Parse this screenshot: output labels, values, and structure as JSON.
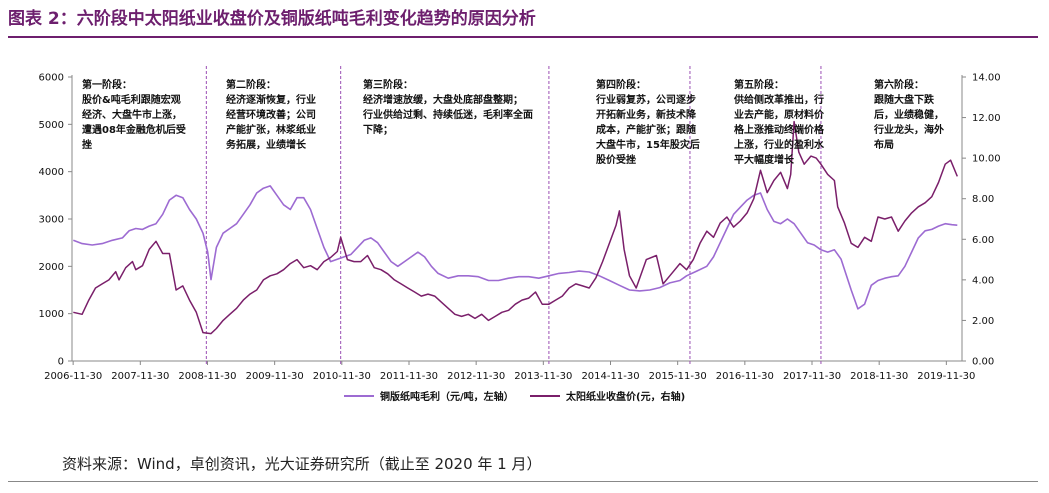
{
  "figure": {
    "title": "图表 2：六阶段中太阳纸业收盘价及铜版纸吨毛利变化趋势的原因分析",
    "source": "资料来源：Wind，卓创资讯，光大证券研究所（截止至 2020 年 1 月）"
  },
  "chart_data": {
    "type": "line",
    "x_tick_labels": [
      "2006-11-30",
      "2007-11-30",
      "2008-11-30",
      "2009-11-30",
      "2010-11-30",
      "2011-11-30",
      "2012-11-30",
      "2013-11-30",
      "2014-11-30",
      "2015-11-30",
      "2016-11-30",
      "2017-11-30",
      "2018-11-30",
      "2019-11-30"
    ],
    "y_left": {
      "ticks": [
        "0",
        "1000",
        "2000",
        "3000",
        "4000",
        "5000",
        "6000"
      ],
      "range": [
        0,
        6000
      ]
    },
    "y_right": {
      "ticks": [
        "0.00",
        "2.00",
        "4.00",
        "6.00",
        "8.00",
        "10.00",
        "12.00",
        "14.00"
      ],
      "range": [
        0,
        14
      ]
    },
    "x_range": [
      2006.9,
      2020.15
    ],
    "grid": false,
    "legend_position": "bottom-center",
    "colors": {
      "margin": "#9d6bd2",
      "price": "#7a1f6a",
      "divider": "#9b4fb4"
    },
    "phase_boundaries": [
      2008.9,
      2010.9,
      2014.0,
      2016.1,
      2018.05
    ],
    "series": [
      {
        "name": "铜版纸吨毛利（元/吨，左轴）",
        "axis": "left",
        "points": [
          [
            2006.92,
            2550
          ],
          [
            2007.05,
            2480
          ],
          [
            2007.2,
            2450
          ],
          [
            2007.35,
            2480
          ],
          [
            2007.5,
            2550
          ],
          [
            2007.65,
            2600
          ],
          [
            2007.75,
            2750
          ],
          [
            2007.85,
            2800
          ],
          [
            2007.95,
            2780
          ],
          [
            2008.05,
            2850
          ],
          [
            2008.15,
            2900
          ],
          [
            2008.25,
            3100
          ],
          [
            2008.35,
            3400
          ],
          [
            2008.45,
            3500
          ],
          [
            2008.55,
            3450
          ],
          [
            2008.65,
            3200
          ],
          [
            2008.75,
            3000
          ],
          [
            2008.85,
            2700
          ],
          [
            2008.92,
            2300
          ],
          [
            2008.97,
            1720
          ],
          [
            2009.05,
            2400
          ],
          [
            2009.15,
            2700
          ],
          [
            2009.25,
            2800
          ],
          [
            2009.35,
            2900
          ],
          [
            2009.45,
            3100
          ],
          [
            2009.55,
            3300
          ],
          [
            2009.65,
            3550
          ],
          [
            2009.75,
            3650
          ],
          [
            2009.85,
            3700
          ],
          [
            2009.95,
            3500
          ],
          [
            2010.05,
            3300
          ],
          [
            2010.15,
            3200
          ],
          [
            2010.25,
            3450
          ],
          [
            2010.35,
            3450
          ],
          [
            2010.45,
            3200
          ],
          [
            2010.55,
            2800
          ],
          [
            2010.65,
            2400
          ],
          [
            2010.75,
            2100
          ],
          [
            2010.85,
            2150
          ],
          [
            2010.95,
            2200
          ],
          [
            2011.05,
            2250
          ],
          [
            2011.15,
            2400
          ],
          [
            2011.25,
            2550
          ],
          [
            2011.35,
            2600
          ],
          [
            2011.45,
            2500
          ],
          [
            2011.55,
            2300
          ],
          [
            2011.65,
            2100
          ],
          [
            2011.75,
            2000
          ],
          [
            2011.85,
            2100
          ],
          [
            2011.95,
            2200
          ],
          [
            2012.05,
            2300
          ],
          [
            2012.15,
            2200
          ],
          [
            2012.25,
            2000
          ],
          [
            2012.35,
            1850
          ],
          [
            2012.5,
            1750
          ],
          [
            2012.65,
            1800
          ],
          [
            2012.8,
            1800
          ],
          [
            2012.95,
            1780
          ],
          [
            2013.1,
            1700
          ],
          [
            2013.25,
            1700
          ],
          [
            2013.4,
            1750
          ],
          [
            2013.55,
            1780
          ],
          [
            2013.7,
            1780
          ],
          [
            2013.85,
            1750
          ],
          [
            2014.0,
            1800
          ],
          [
            2014.15,
            1850
          ],
          [
            2014.3,
            1870
          ],
          [
            2014.45,
            1900
          ],
          [
            2014.6,
            1880
          ],
          [
            2014.75,
            1800
          ],
          [
            2014.9,
            1700
          ],
          [
            2015.05,
            1600
          ],
          [
            2015.2,
            1500
          ],
          [
            2015.35,
            1480
          ],
          [
            2015.5,
            1500
          ],
          [
            2015.65,
            1550
          ],
          [
            2015.8,
            1650
          ],
          [
            2015.95,
            1700
          ],
          [
            2016.05,
            1800
          ],
          [
            2016.2,
            1900
          ],
          [
            2016.35,
            2000
          ],
          [
            2016.45,
            2200
          ],
          [
            2016.55,
            2500
          ],
          [
            2016.65,
            2800
          ],
          [
            2016.75,
            3100
          ],
          [
            2016.85,
            3250
          ],
          [
            2016.95,
            3400
          ],
          [
            2017.05,
            3500
          ],
          [
            2017.15,
            3550
          ],
          [
            2017.25,
            3200
          ],
          [
            2017.35,
            2950
          ],
          [
            2017.45,
            2900
          ],
          [
            2017.55,
            3000
          ],
          [
            2017.65,
            2900
          ],
          [
            2017.75,
            2700
          ],
          [
            2017.85,
            2500
          ],
          [
            2017.95,
            2450
          ],
          [
            2018.05,
            2350
          ],
          [
            2018.15,
            2300
          ],
          [
            2018.25,
            2350
          ],
          [
            2018.35,
            2150
          ],
          [
            2018.5,
            1500
          ],
          [
            2018.6,
            1100
          ],
          [
            2018.7,
            1200
          ],
          [
            2018.8,
            1600
          ],
          [
            2018.9,
            1700
          ],
          [
            2019.0,
            1750
          ],
          [
            2019.1,
            1780
          ],
          [
            2019.2,
            1800
          ],
          [
            2019.3,
            2000
          ],
          [
            2019.4,
            2300
          ],
          [
            2019.5,
            2600
          ],
          [
            2019.6,
            2750
          ],
          [
            2019.7,
            2780
          ],
          [
            2019.8,
            2850
          ],
          [
            2019.9,
            2900
          ],
          [
            2020.0,
            2880
          ],
          [
            2020.08,
            2870
          ]
        ]
      },
      {
        "name": "太阳纸业收盘价(元，右轴)",
        "axis": "right",
        "points": [
          [
            2006.92,
            2.4
          ],
          [
            2007.05,
            2.3
          ],
          [
            2007.15,
            3.0
          ],
          [
            2007.25,
            3.6
          ],
          [
            2007.35,
            3.8
          ],
          [
            2007.45,
            4.0
          ],
          [
            2007.55,
            4.4
          ],
          [
            2007.6,
            4.0
          ],
          [
            2007.7,
            4.6
          ],
          [
            2007.8,
            4.9
          ],
          [
            2007.85,
            4.5
          ],
          [
            2007.95,
            4.7
          ],
          [
            2008.05,
            5.5
          ],
          [
            2008.15,
            5.9
          ],
          [
            2008.25,
            5.3
          ],
          [
            2008.35,
            5.3
          ],
          [
            2008.45,
            3.5
          ],
          [
            2008.55,
            3.7
          ],
          [
            2008.65,
            3.0
          ],
          [
            2008.75,
            2.4
          ],
          [
            2008.85,
            1.4
          ],
          [
            2008.97,
            1.35
          ],
          [
            2009.05,
            1.6
          ],
          [
            2009.15,
            2.0
          ],
          [
            2009.25,
            2.3
          ],
          [
            2009.35,
            2.6
          ],
          [
            2009.45,
            3.0
          ],
          [
            2009.55,
            3.3
          ],
          [
            2009.65,
            3.5
          ],
          [
            2009.75,
            4.0
          ],
          [
            2009.85,
            4.2
          ],
          [
            2009.95,
            4.3
          ],
          [
            2010.05,
            4.5
          ],
          [
            2010.15,
            4.8
          ],
          [
            2010.25,
            5.0
          ],
          [
            2010.35,
            4.6
          ],
          [
            2010.45,
            4.7
          ],
          [
            2010.55,
            4.5
          ],
          [
            2010.65,
            4.9
          ],
          [
            2010.75,
            5.1
          ],
          [
            2010.85,
            5.4
          ],
          [
            2010.9,
            6.1
          ],
          [
            2011.0,
            5.0
          ],
          [
            2011.1,
            4.9
          ],
          [
            2011.2,
            4.9
          ],
          [
            2011.3,
            5.2
          ],
          [
            2011.4,
            4.6
          ],
          [
            2011.5,
            4.5
          ],
          [
            2011.6,
            4.3
          ],
          [
            2011.7,
            4.0
          ],
          [
            2011.8,
            3.8
          ],
          [
            2011.9,
            3.6
          ],
          [
            2012.0,
            3.4
          ],
          [
            2012.1,
            3.2
          ],
          [
            2012.2,
            3.3
          ],
          [
            2012.3,
            3.2
          ],
          [
            2012.4,
            2.9
          ],
          [
            2012.5,
            2.6
          ],
          [
            2012.6,
            2.3
          ],
          [
            2012.7,
            2.2
          ],
          [
            2012.8,
            2.3
          ],
          [
            2012.9,
            2.1
          ],
          [
            2013.0,
            2.3
          ],
          [
            2013.1,
            2.0
          ],
          [
            2013.2,
            2.2
          ],
          [
            2013.3,
            2.4
          ],
          [
            2013.4,
            2.5
          ],
          [
            2013.5,
            2.8
          ],
          [
            2013.6,
            3.0
          ],
          [
            2013.7,
            3.1
          ],
          [
            2013.8,
            3.4
          ],
          [
            2013.9,
            2.8
          ],
          [
            2014.0,
            2.8
          ],
          [
            2014.1,
            3.0
          ],
          [
            2014.2,
            3.2
          ],
          [
            2014.3,
            3.6
          ],
          [
            2014.4,
            3.8
          ],
          [
            2014.5,
            3.7
          ],
          [
            2014.6,
            3.6
          ],
          [
            2014.7,
            4.1
          ],
          [
            2014.8,
            4.9
          ],
          [
            2014.9,
            5.8
          ],
          [
            2015.0,
            6.7
          ],
          [
            2015.05,
            7.4
          ],
          [
            2015.12,
            5.5
          ],
          [
            2015.2,
            4.2
          ],
          [
            2015.3,
            3.6
          ],
          [
            2015.45,
            5.0
          ],
          [
            2015.6,
            5.2
          ],
          [
            2015.7,
            3.8
          ],
          [
            2015.8,
            4.2
          ],
          [
            2015.95,
            4.8
          ],
          [
            2016.05,
            4.5
          ],
          [
            2016.15,
            5.0
          ],
          [
            2016.25,
            5.8
          ],
          [
            2016.35,
            6.4
          ],
          [
            2016.45,
            6.1
          ],
          [
            2016.55,
            6.8
          ],
          [
            2016.65,
            7.1
          ],
          [
            2016.75,
            6.6
          ],
          [
            2016.85,
            6.9
          ],
          [
            2016.95,
            7.3
          ],
          [
            2017.05,
            8.0
          ],
          [
            2017.15,
            9.4
          ],
          [
            2017.25,
            8.3
          ],
          [
            2017.35,
            8.9
          ],
          [
            2017.45,
            9.3
          ],
          [
            2017.55,
            8.5
          ],
          [
            2017.6,
            9.2
          ],
          [
            2017.65,
            11.8
          ],
          [
            2017.72,
            10.3
          ],
          [
            2017.8,
            9.7
          ],
          [
            2017.9,
            10.1
          ],
          [
            2017.98,
            10.0
          ],
          [
            2018.05,
            9.7
          ],
          [
            2018.15,
            9.2
          ],
          [
            2018.25,
            8.9
          ],
          [
            2018.3,
            7.6
          ],
          [
            2018.4,
            6.8
          ],
          [
            2018.5,
            5.8
          ],
          [
            2018.6,
            5.6
          ],
          [
            2018.7,
            6.1
          ],
          [
            2018.8,
            5.9
          ],
          [
            2018.9,
            7.1
          ],
          [
            2019.0,
            7.0
          ],
          [
            2019.1,
            7.1
          ],
          [
            2019.2,
            6.4
          ],
          [
            2019.3,
            6.9
          ],
          [
            2019.4,
            7.3
          ],
          [
            2019.5,
            7.6
          ],
          [
            2019.6,
            7.8
          ],
          [
            2019.7,
            8.1
          ],
          [
            2019.8,
            8.8
          ],
          [
            2019.9,
            9.7
          ],
          [
            2019.98,
            9.9
          ],
          [
            2020.08,
            9.1
          ]
        ]
      }
    ],
    "annotations": [
      {
        "lines": [
          "第一阶段：",
          "股价&吨毛利跟随宏观",
          "经济、大盘牛市上涨，",
          "遭遇08年金融危机后受",
          "挫"
        ]
      },
      {
        "lines": [
          "第二阶段：",
          "经济逐渐恢复，行业",
          "经营环境改善；公司",
          "产能扩张，林浆纸业",
          "务拓展，业绩增长"
        ]
      },
      {
        "lines": [
          "第三阶段：",
          "经济增速放缓，大盘处底部盘整期；",
          "行业供给过剩、持续低迷，毛利率全面",
          "下降；"
        ]
      },
      {
        "lines": [
          "第四阶段：",
          "行业弱复苏，公司逐步",
          "开拓新业务，新技术降",
          "成本，产能扩张；跟随",
          "大盘牛市，15年股灾后",
          "股价受挫"
        ]
      },
      {
        "lines": [
          "第五阶段：",
          "供给侧改革推出，行",
          "业去产能，原材料价",
          "格上涨推动终端价格",
          "上涨，行业的盈利水",
          "平大幅度增长"
        ]
      },
      {
        "lines": [
          "第六阶段：",
          "跟随大盘下跌",
          "后，业绩稳健，",
          "行业龙头，海外",
          "布局"
        ]
      }
    ]
  }
}
